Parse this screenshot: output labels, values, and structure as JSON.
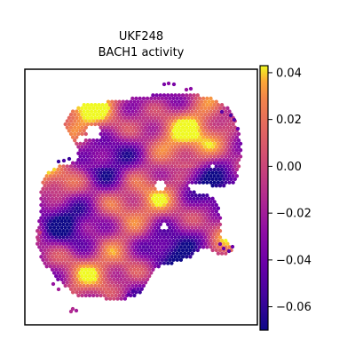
{
  "chart_data": {
    "type": "heatmap",
    "title": "UKF248",
    "subtitle": "BACH1 activity",
    "xlabel": "",
    "ylabel": "",
    "colormap": "plasma",
    "color_range": [
      -0.07,
      0.043
    ],
    "colorbar": {
      "placement": "right",
      "ticks": [
        0.04,
        0.02,
        0.0,
        -0.02,
        -0.04,
        -0.06
      ],
      "tick_labels": [
        "0.04",
        "0.02",
        "0.00",
        "−0.02",
        "−0.04",
        "−0.06"
      ]
    },
    "spatial_spots": "hexagonal grid of spots forming a tissue section; color encodes BACH1 activity (approx. range -0.07 to 0.04)"
  }
}
